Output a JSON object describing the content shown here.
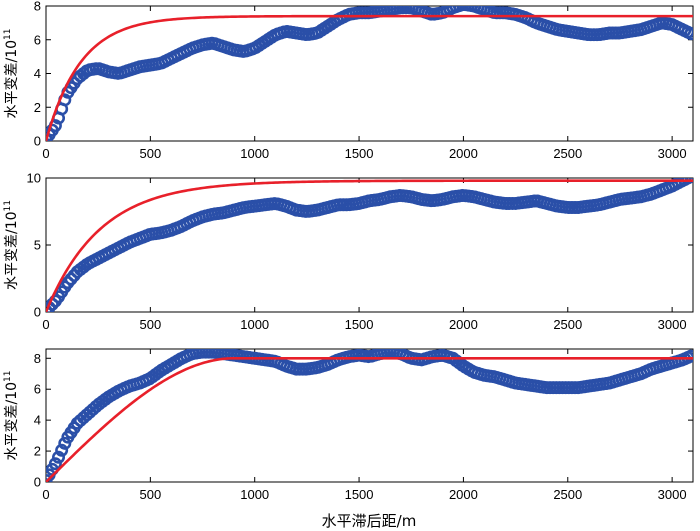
{
  "chart_data": [
    {
      "type": "scatter",
      "ylabel": "水平变差/10",
      "ylabel_exp": "11",
      "xlabel": "",
      "xlim": [
        0,
        3100
      ],
      "ylim": [
        0,
        8
      ],
      "xticks": [
        0,
        500,
        1000,
        1500,
        2000,
        2500,
        3000
      ],
      "yticks": [
        0,
        2,
        4,
        6,
        8
      ],
      "grid": false,
      "series": [
        {
          "kind": "points",
          "color": "#2a4fa8",
          "x": [
            0,
            50,
            100,
            150,
            200,
            250,
            300,
            350,
            400,
            450,
            500,
            550,
            600,
            650,
            700,
            750,
            800,
            850,
            900,
            950,
            1000,
            1050,
            1100,
            1150,
            1200,
            1250,
            1300,
            1350,
            1400,
            1450,
            1500,
            1550,
            1600,
            1650,
            1700,
            1750,
            1800,
            1850,
            1900,
            1950,
            2000,
            2050,
            2100,
            2150,
            2200,
            2250,
            2300,
            2350,
            2400,
            2450,
            2500,
            2550,
            2600,
            2650,
            2700,
            2750,
            2800,
            2850,
            2900,
            2950,
            3000,
            3050,
            3100
          ],
          "y": [
            0.1,
            1.0,
            2.8,
            3.7,
            4.2,
            4.3,
            4.1,
            4.0,
            4.2,
            4.4,
            4.5,
            4.6,
            4.9,
            5.2,
            5.5,
            5.7,
            5.8,
            5.6,
            5.4,
            5.3,
            5.5,
            5.9,
            6.3,
            6.5,
            6.4,
            6.3,
            6.4,
            6.8,
            7.2,
            7.5,
            7.6,
            7.6,
            7.7,
            7.8,
            7.9,
            7.9,
            7.7,
            7.5,
            7.6,
            7.9,
            8.1,
            8.0,
            7.8,
            7.6,
            7.6,
            7.5,
            7.3,
            7.0,
            6.8,
            6.6,
            6.5,
            6.4,
            6.3,
            6.3,
            6.4,
            6.4,
            6.5,
            6.6,
            6.8,
            7.0,
            6.9,
            6.6,
            6.3
          ]
        },
        {
          "kind": "fit",
          "color": "#e8202a",
          "model": "exponential",
          "sill": 7.4,
          "range": 500
        }
      ]
    },
    {
      "type": "scatter",
      "ylabel": "水平变差/10",
      "ylabel_exp": "11",
      "xlabel": "",
      "xlim": [
        0,
        3100
      ],
      "ylim": [
        0,
        10
      ],
      "xticks": [
        0,
        500,
        1000,
        1500,
        2000,
        2500,
        3000
      ],
      "yticks": [
        0,
        5,
        10
      ],
      "grid": false,
      "series": [
        {
          "kind": "points",
          "color": "#2a4fa8",
          "x": [
            0,
            50,
            100,
            150,
            200,
            250,
            300,
            350,
            400,
            450,
            500,
            550,
            600,
            650,
            700,
            750,
            800,
            850,
            900,
            950,
            1000,
            1050,
            1100,
            1150,
            1200,
            1250,
            1300,
            1350,
            1400,
            1450,
            1500,
            1550,
            1600,
            1650,
            1700,
            1750,
            1800,
            1850,
            1900,
            1950,
            2000,
            2050,
            2100,
            2150,
            2200,
            2250,
            2300,
            2350,
            2400,
            2450,
            2500,
            2550,
            2600,
            2650,
            2700,
            2750,
            2800,
            2850,
            2900,
            2950,
            3000,
            3050,
            3100
          ],
          "y": [
            0.1,
            0.9,
            2.1,
            3.0,
            3.6,
            4.0,
            4.4,
            4.8,
            5.2,
            5.5,
            5.8,
            5.9,
            6.1,
            6.4,
            6.8,
            7.1,
            7.3,
            7.4,
            7.6,
            7.8,
            7.9,
            8.0,
            8.1,
            7.9,
            7.6,
            7.5,
            7.6,
            7.8,
            8.0,
            8.0,
            8.1,
            8.3,
            8.4,
            8.6,
            8.7,
            8.6,
            8.4,
            8.3,
            8.4,
            8.6,
            8.7,
            8.6,
            8.4,
            8.2,
            8.1,
            8.1,
            8.2,
            8.3,
            8.1,
            7.9,
            7.8,
            7.8,
            7.9,
            8.0,
            8.2,
            8.4,
            8.5,
            8.6,
            8.8,
            9.1,
            9.4,
            9.8,
            10.2
          ]
        },
        {
          "kind": "fit",
          "color": "#e8202a",
          "model": "exponential",
          "sill": 9.8,
          "range": 780
        }
      ]
    },
    {
      "type": "scatter",
      "ylabel": "水平变差/10",
      "ylabel_exp": "11",
      "xlabel": "水平滞后距/m",
      "xlim": [
        0,
        3100
      ],
      "ylim": [
        0,
        8.6
      ],
      "xticks": [
        0,
        500,
        1000,
        1500,
        2000,
        2500,
        3000
      ],
      "yticks": [
        0,
        2,
        4,
        6,
        8
      ],
      "grid": false,
      "series": [
        {
          "kind": "points",
          "color": "#2a4fa8",
          "x": [
            0,
            50,
            100,
            150,
            200,
            250,
            300,
            350,
            400,
            450,
            500,
            550,
            600,
            650,
            700,
            750,
            800,
            850,
            900,
            950,
            1000,
            1050,
            1100,
            1150,
            1200,
            1250,
            1300,
            1350,
            1400,
            1450,
            1500,
            1550,
            1600,
            1650,
            1700,
            1750,
            1800,
            1850,
            1900,
            1950,
            2000,
            2050,
            2100,
            2150,
            2200,
            2250,
            2300,
            2350,
            2400,
            2450,
            2500,
            2550,
            2600,
            2650,
            2700,
            2750,
            2800,
            2850,
            2900,
            2950,
            3000,
            3050,
            3100
          ],
          "y": [
            0.1,
            1.3,
            2.8,
            3.8,
            4.4,
            5.0,
            5.5,
            5.9,
            6.2,
            6.4,
            6.7,
            7.2,
            7.6,
            8.0,
            8.3,
            8.4,
            8.4,
            8.3,
            8.2,
            8.1,
            8.0,
            7.9,
            7.8,
            7.5,
            7.3,
            7.3,
            7.4,
            7.6,
            7.9,
            8.1,
            8.2,
            8.1,
            8.3,
            8.4,
            8.3,
            8.0,
            7.9,
            8.1,
            8.2,
            8.0,
            7.5,
            7.1,
            6.9,
            6.8,
            6.6,
            6.4,
            6.3,
            6.2,
            6.1,
            6.1,
            6.1,
            6.1,
            6.2,
            6.3,
            6.4,
            6.6,
            6.8,
            7.0,
            7.3,
            7.5,
            7.7,
            7.9,
            8.2
          ]
        },
        {
          "kind": "fit",
          "color": "#e8202a",
          "model": "spherical",
          "sill": 8.0,
          "range": 900
        }
      ]
    }
  ]
}
